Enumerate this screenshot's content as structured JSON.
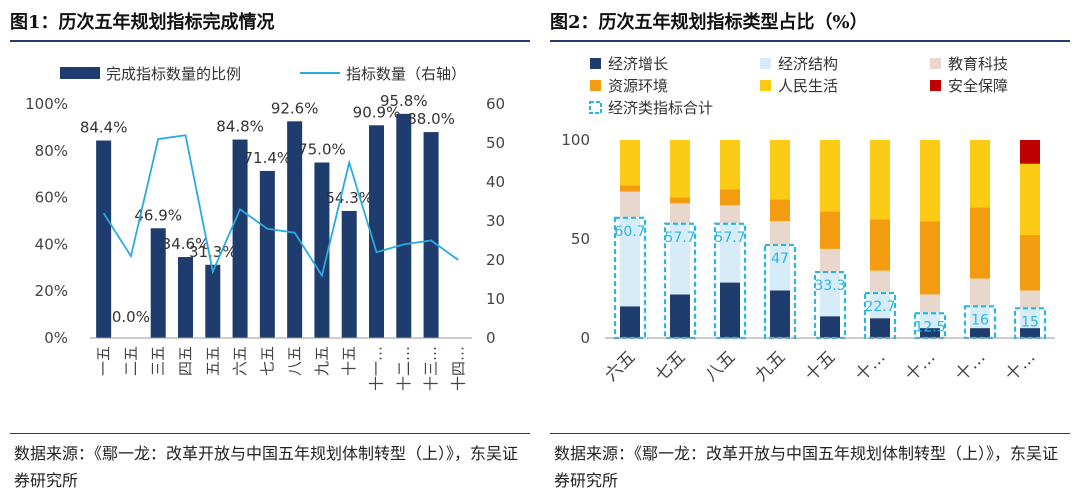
{
  "left": {
    "title": "图1：历次五年规划指标完成情况",
    "source": "数据来源：《鄢一龙：改革开放与中国五年规划体制转型（上）》，东吴证券研究所",
    "chart_data": {
      "type": "bar",
      "categories": [
        "一五",
        "二五",
        "三五",
        "四五",
        "五五",
        "六五",
        "七五",
        "八五",
        "九五",
        "十五",
        "十一…",
        "十二…",
        "十三…",
        "十四…"
      ],
      "series": [
        {
          "name": "完成指标数量的比例",
          "type": "bar",
          "axis": "left",
          "values": [
            84.4,
            0.0,
            46.9,
            34.6,
            31.3,
            84.8,
            71.4,
            92.6,
            75.0,
            54.3,
            90.9,
            95.8,
            88.0,
            null
          ],
          "labels": [
            "84.4%",
            "0.0%",
            "46.9%",
            "34.6%",
            "31.3%",
            "84.8%",
            "71.4%",
            "92.6%",
            "75.0%",
            "54.3%",
            "90.9%",
            "95.8%",
            "88.0%",
            ""
          ]
        },
        {
          "name": "指标数量（右轴）",
          "type": "line",
          "axis": "right",
          "values": [
            32,
            21,
            51,
            52,
            17,
            33,
            28,
            27,
            16,
            45,
            22,
            24,
            25,
            20
          ]
        }
      ],
      "yleft": {
        "min": 0,
        "max": 100,
        "ticks": [
          "0%",
          "20%",
          "40%",
          "60%",
          "80%",
          "100%"
        ]
      },
      "yright": {
        "min": 0,
        "max": 60,
        "ticks": [
          "0",
          "10",
          "20",
          "30",
          "40",
          "50",
          "60"
        ]
      },
      "colors": {
        "bar": "#1f3c6e",
        "line": "#29abe2"
      },
      "legend": "top"
    }
  },
  "right": {
    "title": "图2：历次五年规划指标类型占比（%）",
    "source": "数据来源：《鄢一龙：改革开放与中国五年规划体制转型（上）》，东吴证券研究所",
    "chart_data": {
      "type": "bar",
      "stacked": true,
      "categories": [
        "六五",
        "七五",
        "八五",
        "九五",
        "十五",
        "十…",
        "十…",
        "十…",
        "十…"
      ],
      "series": [
        {
          "name": "经济增长",
          "color": "#1f3c6e",
          "values": [
            16,
            22,
            28,
            24,
            11,
            10,
            5,
            5,
            5
          ]
        },
        {
          "name": "经济结构",
          "color": "#d6ecf8",
          "values": [
            45,
            36,
            30,
            23,
            22,
            13,
            8,
            11,
            10
          ]
        },
        {
          "name": "教育科技",
          "color": "#e8d7cc",
          "values": [
            13,
            10,
            9,
            12,
            12,
            11,
            9,
            14,
            9
          ]
        },
        {
          "name": "资源环境",
          "color": "#f39c12",
          "values": [
            3,
            3,
            8,
            11,
            19,
            26,
            37,
            36,
            28
          ]
        },
        {
          "name": "人民生活",
          "color": "#fccb16",
          "values": [
            23,
            29,
            25,
            30,
            36,
            40,
            41,
            34,
            36
          ]
        },
        {
          "name": "安全保障",
          "color": "#c00000",
          "values": [
            0,
            0,
            0,
            0,
            0,
            0,
            0,
            0,
            12
          ]
        }
      ],
      "overlay": {
        "name": "经济类指标合计",
        "values": [
          60.7,
          57.7,
          57.7,
          47,
          33.3,
          22.7,
          12.5,
          16,
          15
        ],
        "labels": [
          "60.7",
          "57.7",
          "57.7",
          "47",
          "33.3",
          "22.7",
          "12.5",
          "16",
          "15"
        ],
        "color": "#2ab6e3"
      },
      "yaxis": {
        "min": 0,
        "max": 100,
        "ticks": [
          "0",
          "50",
          "100"
        ]
      },
      "legend": "top"
    }
  }
}
